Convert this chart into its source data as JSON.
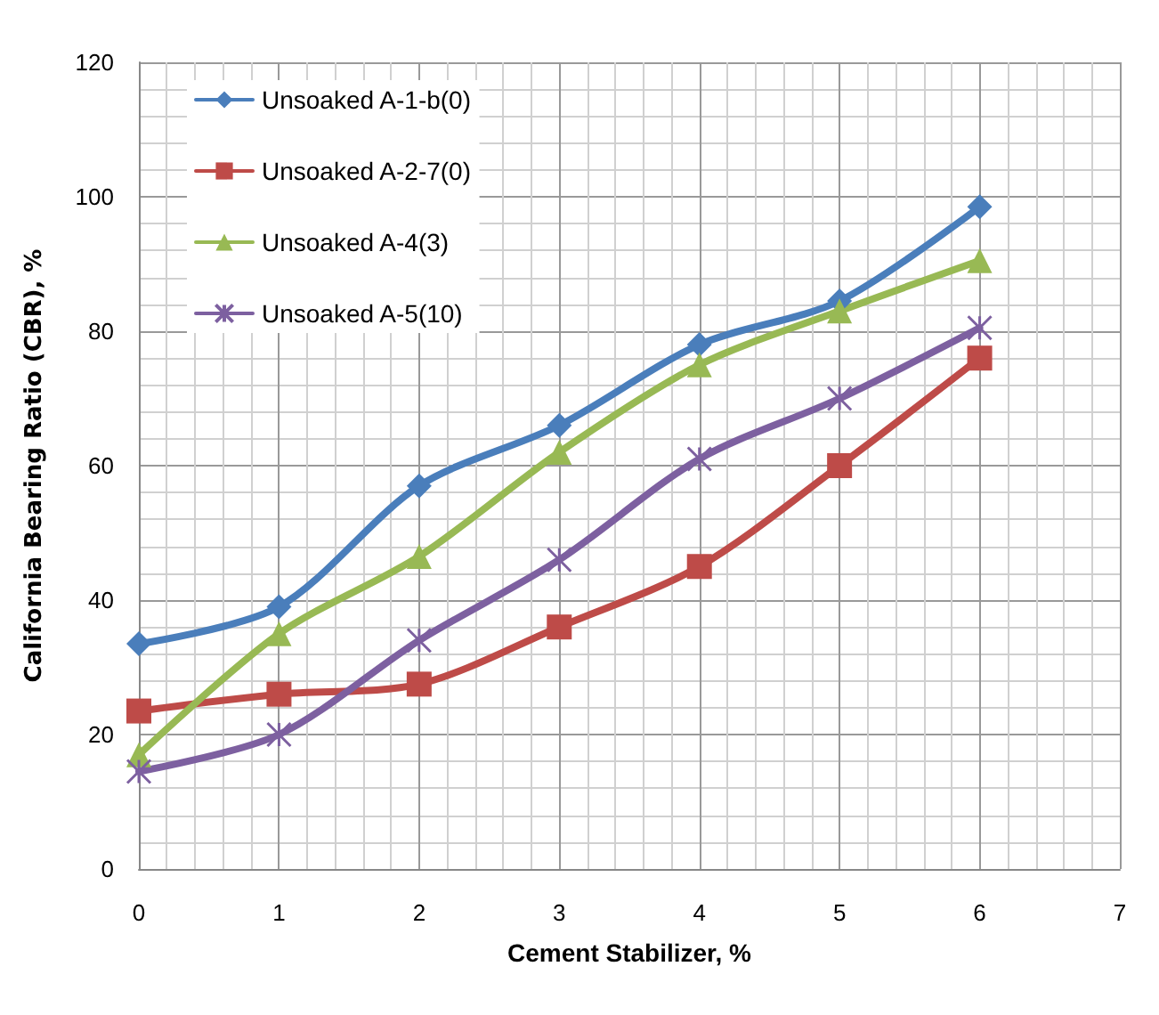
{
  "chart_data": {
    "type": "line",
    "xlabel": "Cement Stabilizer, %",
    "ylabel": "California Bearing Ratio (CBR), %",
    "x": [
      0,
      1,
      2,
      3,
      4,
      5,
      6
    ],
    "xlim": [
      0,
      7
    ],
    "xticks": [
      0,
      1,
      2,
      3,
      4,
      5,
      6,
      7
    ],
    "ylim": [
      0,
      120
    ],
    "yticks": [
      0,
      20,
      40,
      60,
      80,
      100,
      120
    ],
    "grid": true,
    "legend": "top left",
    "line_style": "solid",
    "series": [
      {
        "name": "Unsoaked A-1-b(0)",
        "color": "#4a7ebb",
        "marker": "diamond",
        "values": [
          33.5,
          39,
          57,
          66,
          78,
          84.5,
          98.5
        ]
      },
      {
        "name": "Unsoaked A-2-7(0)",
        "color": "#be4b48",
        "marker": "square",
        "values": [
          23.5,
          26,
          27.5,
          36,
          45,
          60,
          76
        ]
      },
      {
        "name": "Unsoaked A-4(3)",
        "color": "#98b954",
        "marker": "triangle",
        "values": [
          17,
          35,
          46.5,
          62,
          75,
          83,
          90.5
        ]
      },
      {
        "name": "Unsoaked A-5(10)",
        "color": "#7d60a0",
        "marker": "cross",
        "values": [
          14.5,
          20,
          34,
          46,
          61,
          70,
          80.5
        ]
      }
    ]
  }
}
